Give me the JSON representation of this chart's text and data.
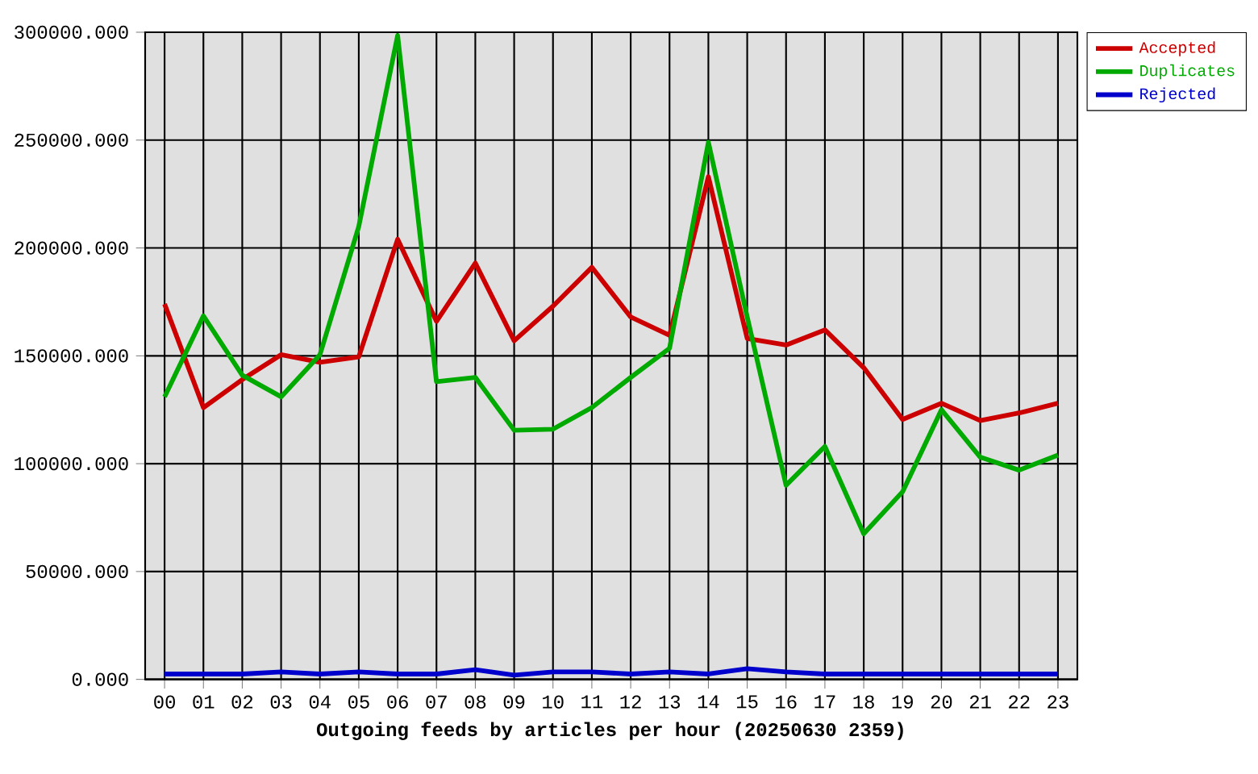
{
  "chart_data": {
    "type": "line",
    "xlabel": "Outgoing feeds by articles per hour (20250630 2359)",
    "categories": [
      "00",
      "01",
      "02",
      "03",
      "04",
      "05",
      "06",
      "07",
      "08",
      "09",
      "10",
      "11",
      "12",
      "13",
      "14",
      "15",
      "16",
      "17",
      "18",
      "19",
      "20",
      "21",
      "22",
      "23"
    ],
    "series": [
      {
        "name": "Accepted",
        "color": "#cc0000",
        "values": [
          174000,
          126000,
          139000,
          150500,
          147000,
          149500,
          204000,
          166000,
          193000,
          157000,
          173000,
          191000,
          168000,
          159500,
          233000,
          158000,
          155000,
          162000,
          144500,
          120500,
          128000,
          120000,
          123500,
          128000
        ]
      },
      {
        "name": "Duplicates",
        "color": "#00aa00",
        "values": [
          131000,
          168500,
          141000,
          131000,
          150500,
          210000,
          298500,
          138000,
          140000,
          115500,
          116000,
          126000,
          140000,
          153500,
          249000,
          168000,
          90000,
          108000,
          67500,
          87000,
          125000,
          103000,
          97000,
          104000
        ]
      },
      {
        "name": "Rejected",
        "color": "#0000cc",
        "values": [
          2500,
          2500,
          2500,
          3500,
          2500,
          3500,
          2500,
          2500,
          4500,
          2000,
          3500,
          3500,
          2500,
          3500,
          2500,
          5000,
          3500,
          2500,
          2500,
          2500,
          2500,
          2500,
          2500,
          2500
        ]
      }
    ],
    "ylim": [
      0,
      300000
    ],
    "yticks": [
      {
        "value": 0,
        "label": "0.000"
      },
      {
        "value": 50000,
        "label": "50000.000"
      },
      {
        "value": 100000,
        "label": "100000.000"
      },
      {
        "value": 150000,
        "label": "150000.000"
      },
      {
        "value": 200000,
        "label": "200000.000"
      },
      {
        "value": 250000,
        "label": "250000.000"
      },
      {
        "value": 300000,
        "label": "300000.000"
      }
    ],
    "grid": true,
    "legend": "top right",
    "marker": "none",
    "line_style": "solid"
  }
}
